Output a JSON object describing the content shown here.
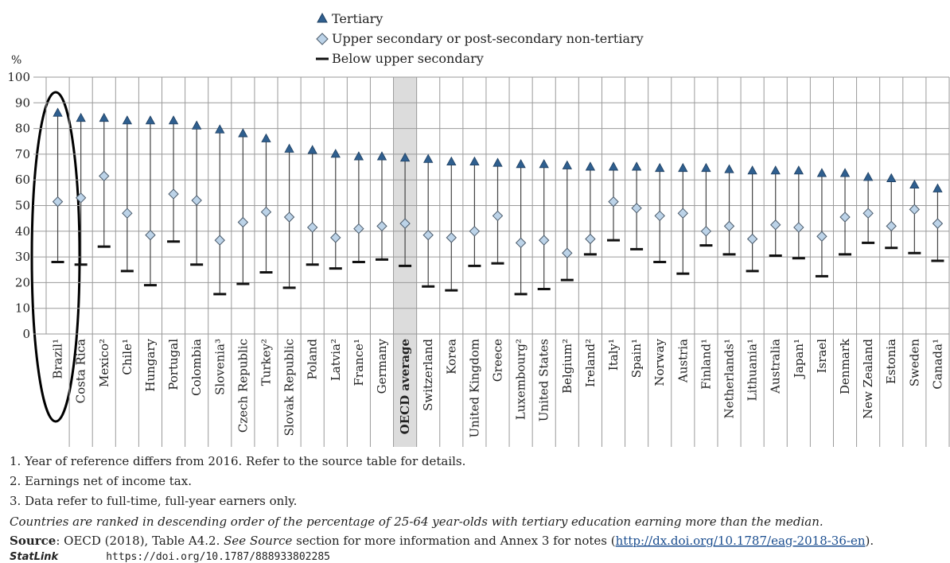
{
  "chart_data": {
    "type": "range-dot",
    "y_unit_label": "%",
    "categories": [
      "Brazil¹",
      "Costa Rica",
      "Mexico²",
      "Chile¹",
      "Hungary",
      "Portugal",
      "Colombia",
      "Slovenia³",
      "Czech Republic",
      "Turkey²",
      "Slovak Republic",
      "Poland",
      "Latvia²",
      "France¹",
      "Germany",
      "OECD average",
      "Switzerland",
      "Korea",
      "United Kingdom",
      "Greece",
      "Luxembourg²",
      "United States",
      "Belgium²",
      "Ireland²",
      "Italy¹",
      "Spain¹",
      "Norway",
      "Austria",
      "Finland¹",
      "Netherlands¹",
      "Lithuania¹",
      "Australia",
      "Japan¹",
      "Israel",
      "Denmark",
      "New Zealand",
      "Estonia",
      "Sweden",
      "Canada¹"
    ],
    "highlight_category": "OECD average",
    "series": [
      {
        "name": "Tertiary",
        "marker": "triangle",
        "color": "#2f5f8f",
        "values": [
          86,
          84,
          84,
          83,
          83,
          83,
          81,
          79.5,
          78,
          76,
          72,
          71.5,
          70,
          69,
          69,
          68.5,
          68,
          67,
          67,
          66.5,
          66,
          66,
          65.5,
          65,
          65,
          65,
          64.5,
          64.5,
          64.5,
          64,
          63.5,
          63.5,
          63.5,
          62.5,
          62.5,
          61,
          60.5,
          58,
          56.5
        ]
      },
      {
        "name": "Upper secondary or post-secondary non-tertiary",
        "marker": "diamond",
        "color": "#bcd3e8",
        "values": [
          51.5,
          53,
          61.5,
          47,
          38.5,
          54.5,
          52,
          36.5,
          43.5,
          47.5,
          45.5,
          41.5,
          37.5,
          41,
          42,
          43,
          38.5,
          37.5,
          40,
          46,
          35.5,
          36.5,
          31.5,
          37,
          51.5,
          49,
          46,
          47,
          40,
          42,
          37,
          42.5,
          41.5,
          38,
          45.5,
          47,
          42,
          48.5,
          43
        ]
      },
      {
        "name": "Below upper secondary",
        "marker": "dash",
        "color": "#111111",
        "values": [
          28,
          27,
          34,
          24.5,
          19,
          36,
          27,
          15.5,
          19.5,
          24,
          18,
          27,
          25.5,
          28,
          29,
          26.5,
          18.5,
          17,
          26.5,
          27.5,
          15.5,
          17.5,
          21,
          31,
          36.5,
          33,
          28,
          23.5,
          34.5,
          31,
          24.5,
          30.5,
          29.5,
          22.5,
          31,
          35.5,
          33.5,
          31.5,
          28.5
        ]
      }
    ],
    "ylim": [
      0,
      100
    ],
    "yticks": [
      0,
      10,
      20,
      30,
      40,
      50,
      60,
      70,
      80,
      90,
      100
    ],
    "grid": true,
    "legend": "top",
    "notes": [
      "1. Year of reference differs from 2016. Refer to the source table for details.",
      "2. Earnings net of income tax.",
      "3. Data refer to full-time, full-year earners only."
    ],
    "ranking_note": "Countries are ranked in descending order of the percentage of 25-64 year-olds with tertiary education earning more than the median.",
    "source": {
      "label": "Source",
      "part1": ": OECD (2018), Table A4.2. ",
      "part2": "See Source",
      "part3": " section for more information and Annex 3 for notes (",
      "link": "http://dx.doi.org/10.1787/eag-2018-36-en",
      "part4": ")."
    },
    "statlink": {
      "label": "StatLink",
      "url": "https://doi.org/10.1787/888933802285"
    }
  }
}
